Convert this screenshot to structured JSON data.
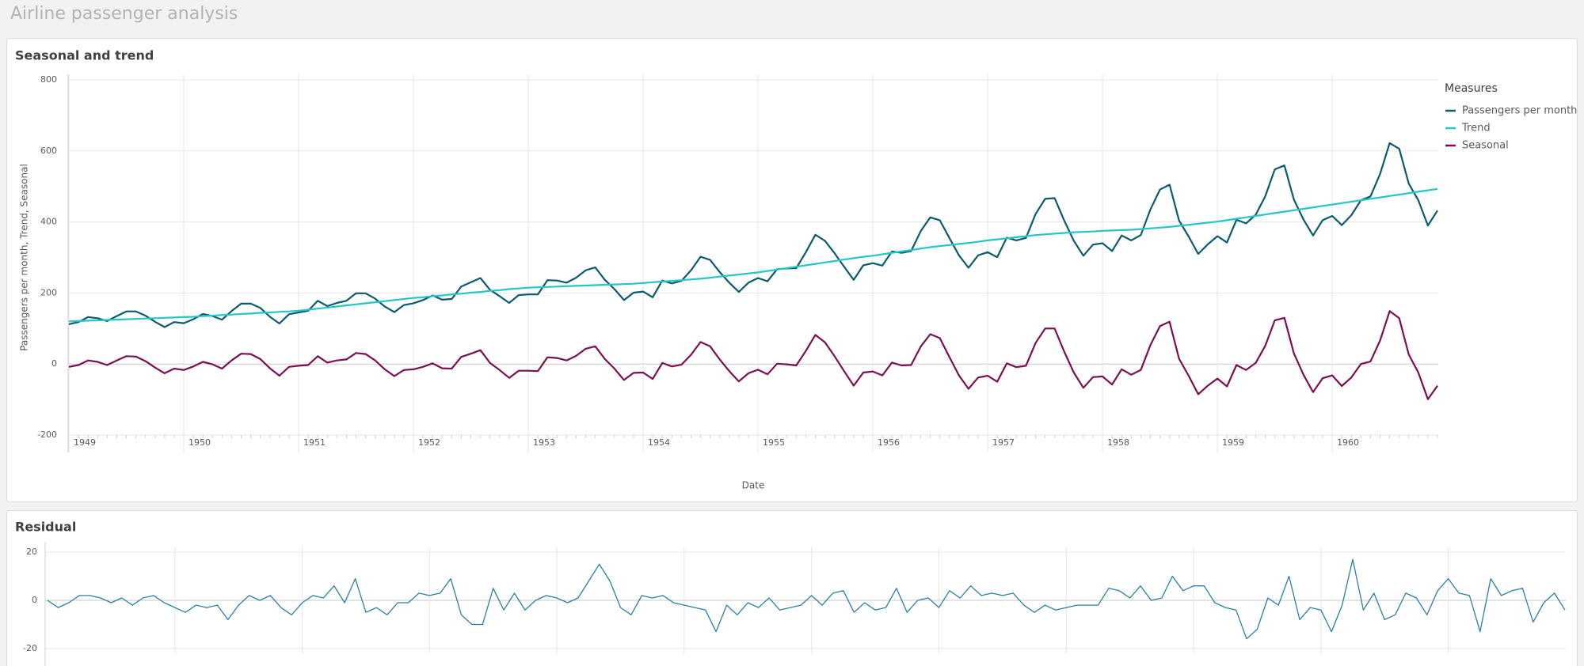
{
  "page_title": "Airline passenger analysis",
  "chart_data": [
    {
      "type": "line",
      "title": "Seasonal and trend",
      "x_label": "Date",
      "y_label": "Passengers per month, Trend, Seasonal",
      "legend_title": "Measures",
      "legend": "right",
      "grid": true,
      "categories": [
        "1949",
        null,
        null,
        null,
        null,
        null,
        null,
        null,
        null,
        null,
        null,
        null,
        "1950",
        null,
        null,
        null,
        null,
        null,
        null,
        null,
        null,
        null,
        null,
        null,
        "1951",
        null,
        null,
        null,
        null,
        null,
        null,
        null,
        null,
        null,
        null,
        null,
        "1952",
        null,
        null,
        null,
        null,
        null,
        null,
        null,
        null,
        null,
        null,
        null,
        "1953",
        null,
        null,
        null,
        null,
        null,
        null,
        null,
        null,
        null,
        null,
        null,
        "1954",
        null,
        null,
        null,
        null,
        null,
        null,
        null,
        null,
        null,
        null,
        null,
        "1955",
        null,
        null,
        null,
        null,
        null,
        null,
        null,
        null,
        null,
        null,
        null,
        "1956",
        null,
        null,
        null,
        null,
        null,
        null,
        null,
        null,
        null,
        null,
        null,
        "1957",
        null,
        null,
        null,
        null,
        null,
        null,
        null,
        null,
        null,
        null,
        null,
        "1958",
        null,
        null,
        null,
        null,
        null,
        null,
        null,
        null,
        null,
        null,
        null,
        "1959",
        null,
        null,
        null,
        null,
        null,
        null,
        null,
        null,
        null,
        null,
        null,
        "1960",
        null,
        null,
        null,
        null,
        null,
        null,
        null,
        null,
        null,
        null,
        null
      ],
      "series": [
        {
          "name": "Passengers per month",
          "color": "#0b5b6f",
          "values": [
            112,
            118,
            132,
            129,
            121,
            135,
            148,
            148,
            136,
            119,
            104,
            118,
            115,
            126,
            141,
            135,
            125,
            149,
            170,
            170,
            158,
            133,
            114,
            140,
            145,
            150,
            178,
            163,
            172,
            178,
            199,
            199,
            184,
            162,
            146,
            166,
            171,
            180,
            193,
            181,
            183,
            218,
            230,
            242,
            209,
            191,
            172,
            194,
            196,
            196,
            236,
            235,
            229,
            243,
            264,
            272,
            237,
            211,
            180,
            201,
            204,
            188,
            235,
            227,
            234,
            264,
            302,
            293,
            259,
            229,
            203,
            229,
            242,
            233,
            267,
            269,
            270,
            315,
            364,
            347,
            312,
            274,
            237,
            278,
            284,
            277,
            317,
            313,
            318,
            374,
            413,
            405,
            355,
            306,
            271,
            306,
            315,
            301,
            356,
            348,
            355,
            422,
            465,
            467,
            404,
            347,
            305,
            336,
            340,
            318,
            362,
            348,
            363,
            435,
            491,
            505,
            404,
            359,
            310,
            337,
            360,
            342,
            406,
            396,
            420,
            472,
            548,
            559,
            463,
            407,
            362,
            405,
            417,
            391,
            419,
            461,
            472,
            535,
            622,
            606,
            508,
            461,
            390,
            432
          ]
        },
        {
          "name": "Trend",
          "color": "#24c6c6",
          "values": [
            120,
            121,
            122,
            123,
            124,
            125,
            126,
            127,
            128,
            129,
            130,
            131,
            132,
            133,
            135,
            136,
            138,
            139,
            141,
            142,
            144,
            145,
            147,
            148,
            150,
            153,
            156,
            159,
            162,
            165,
            168,
            171,
            174,
            177,
            180,
            183,
            186,
            188,
            191,
            193,
            196,
            198,
            201,
            203,
            206,
            208,
            211,
            213,
            215,
            216,
            217,
            218,
            219,
            220,
            221,
            222,
            223,
            224,
            225,
            226,
            228,
            230,
            232,
            234,
            236,
            238,
            240,
            243,
            246,
            249,
            252,
            255,
            258,
            262,
            266,
            270,
            274,
            278,
            282,
            286,
            290,
            294,
            298,
            302,
            305,
            309,
            313,
            317,
            321,
            325,
            329,
            332,
            335,
            338,
            341,
            344,
            348,
            351,
            354,
            357,
            360,
            363,
            365,
            367,
            369,
            371,
            372,
            373,
            375,
            376,
            377,
            378,
            380,
            382,
            384,
            386,
            389,
            392,
            395,
            398,
            401,
            405,
            409,
            413,
            417,
            421,
            425,
            429,
            433,
            437,
            441,
            445,
            449,
            453,
            457,
            461,
            465,
            469,
            473,
            477,
            481,
            485,
            489,
            493
          ]
        },
        {
          "name": "Seasonal",
          "color": "#7a0f52",
          "values": [
            -8,
            -3,
            10,
            6,
            -3,
            10,
            22,
            21,
            8,
            -10,
            -26,
            -13,
            -17,
            -7,
            6,
            -1,
            -13,
            10,
            29,
            28,
            14,
            -12,
            -33,
            -8,
            -5,
            -3,
            22,
            4,
            10,
            13,
            31,
            28,
            10,
            -15,
            -34,
            -17,
            -15,
            -8,
            2,
            -12,
            -13,
            20,
            29,
            39,
            3,
            -17,
            -39,
            -19,
            -19,
            -20,
            19,
            17,
            10,
            23,
            43,
            50,
            14,
            -13,
            -45,
            -25,
            -24,
            -42,
            3,
            -7,
            -2,
            26,
            62,
            50,
            13,
            -20,
            -49,
            -26,
            -16,
            -29,
            1,
            -1,
            -4,
            37,
            82,
            61,
            22,
            -20,
            -61,
            -24,
            -21,
            -32,
            4,
            -4,
            -3,
            49,
            84,
            73,
            20,
            -32,
            -70,
            -38,
            -33,
            -50,
            2,
            -9,
            -5,
            59,
            100,
            100,
            35,
            -24,
            -67,
            -37,
            -35,
            -58,
            -15,
            -30,
            -17,
            53,
            107,
            119,
            15,
            -33,
            -85,
            -61,
            -41,
            -63,
            -3,
            -17,
            3,
            51,
            123,
            130,
            30,
            -30,
            -79,
            -40,
            -32,
            -62,
            -38,
            0,
            7,
            66,
            149,
            129,
            27,
            -24,
            -99,
            -61
          ]
        }
      ],
      "ylim": [
        -200,
        800
      ],
      "yticks": [
        -200,
        0,
        200,
        400,
        600,
        800
      ]
    },
    {
      "type": "line",
      "title": "Residual",
      "grid": true,
      "color": "#2b7fa3",
      "values": [
        0,
        -3,
        -1,
        2,
        2,
        1,
        -1,
        1,
        -2,
        1,
        2,
        -1,
        -3,
        -5,
        -2,
        -3,
        -2,
        -8,
        -2,
        2,
        0,
        2,
        -3,
        -6,
        -1,
        2,
        1,
        6,
        -1,
        9,
        -5,
        -3,
        -6,
        -1,
        -1,
        3,
        2,
        3,
        9,
        -6,
        -10,
        -10,
        5,
        -4,
        3,
        -4,
        0,
        2,
        1,
        -1,
        1,
        8,
        15,
        8,
        -3,
        -6,
        2,
        1,
        2,
        -1,
        -2,
        -3,
        -4,
        -13,
        -2,
        -6,
        -1,
        -3,
        1,
        -4,
        -3,
        -2,
        2,
        -2,
        3,
        4,
        -5,
        -1,
        -4,
        -3,
        5,
        -5,
        0,
        1,
        -3,
        4,
        1,
        6,
        2,
        3,
        2,
        3,
        -2,
        -5,
        -2,
        -4,
        -3,
        -2,
        -2,
        -2,
        5,
        4,
        1,
        6,
        0,
        1,
        10,
        4,
        6,
        6,
        -1,
        -3,
        -4,
        -16,
        -12,
        1,
        -2,
        10,
        -8,
        -3,
        -4,
        -13,
        -2,
        17,
        -4,
        3,
        -8,
        -6,
        3,
        1,
        -6,
        4,
        9,
        3,
        2,
        -13,
        9,
        2,
        4,
        5,
        -9,
        -1,
        3,
        -4
      ],
      "ylim": [
        -22,
        22
      ],
      "yticks": [
        -20,
        0,
        20
      ]
    }
  ]
}
